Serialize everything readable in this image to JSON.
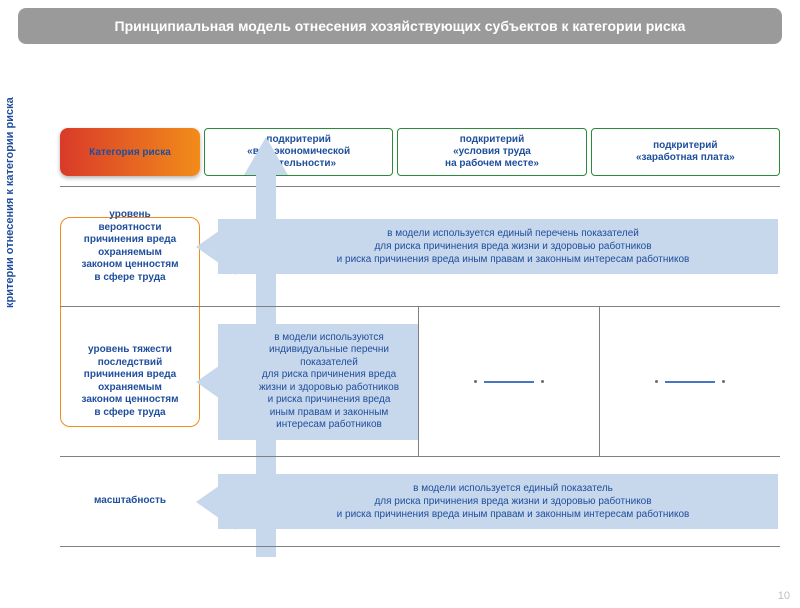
{
  "title": "Принципиальная модель отнесения хозяйствующих субъектов к категории риска",
  "side_label": "критерии отнесения к категории риска",
  "page_number": "10",
  "colors": {
    "title_bg": "#9a9a9a",
    "accent_blue": "#1f4e9c",
    "banner_blue": "#c7d7ec",
    "green_border": "#2a8a3a",
    "orange_border": "#f28c1a",
    "grad_start": "#d93a2a",
    "grad_end": "#f28c1a",
    "grid_line": "#808080"
  },
  "header": {
    "risk_category_label": "Категория риска",
    "sub1": "подкритерий\n«вид экономической\nдеятельности»",
    "sub2": "подкритерий\n«условия труда\nна рабочем месте»",
    "sub3": "подкритерий\n«заработная плата»"
  },
  "rows": {
    "r1": {
      "left": "уровень\nвероятности\nпричинения вреда\nохраняемым\nзаконом ценностям\nв сфере труда",
      "banner": "в модели используется единый перечень показателей\nдля риска причинения вреда жизни и здоровью работников\nи риска причинения вреда иным правам и законным интересам работников"
    },
    "r2": {
      "left": "уровень тяжести\nпоследствий\nпричинения вреда\nохраняемым\nзаконом ценностям\nв сфере труда",
      "banner": "в модели используются\nиндивидуальные перечни\nпоказателей\nдля риска причинения вреда\nжизни и здоровью работников\nи риска причинения вреда\nиным правам и законным\nинтересам работников"
    },
    "r3": {
      "left": "масштабность",
      "banner": "в модели используется единый показатель\nдля риска причинения вреда жизни и здоровью работников\nи риска причинения вреда иным правам и законным интересам работников"
    }
  }
}
